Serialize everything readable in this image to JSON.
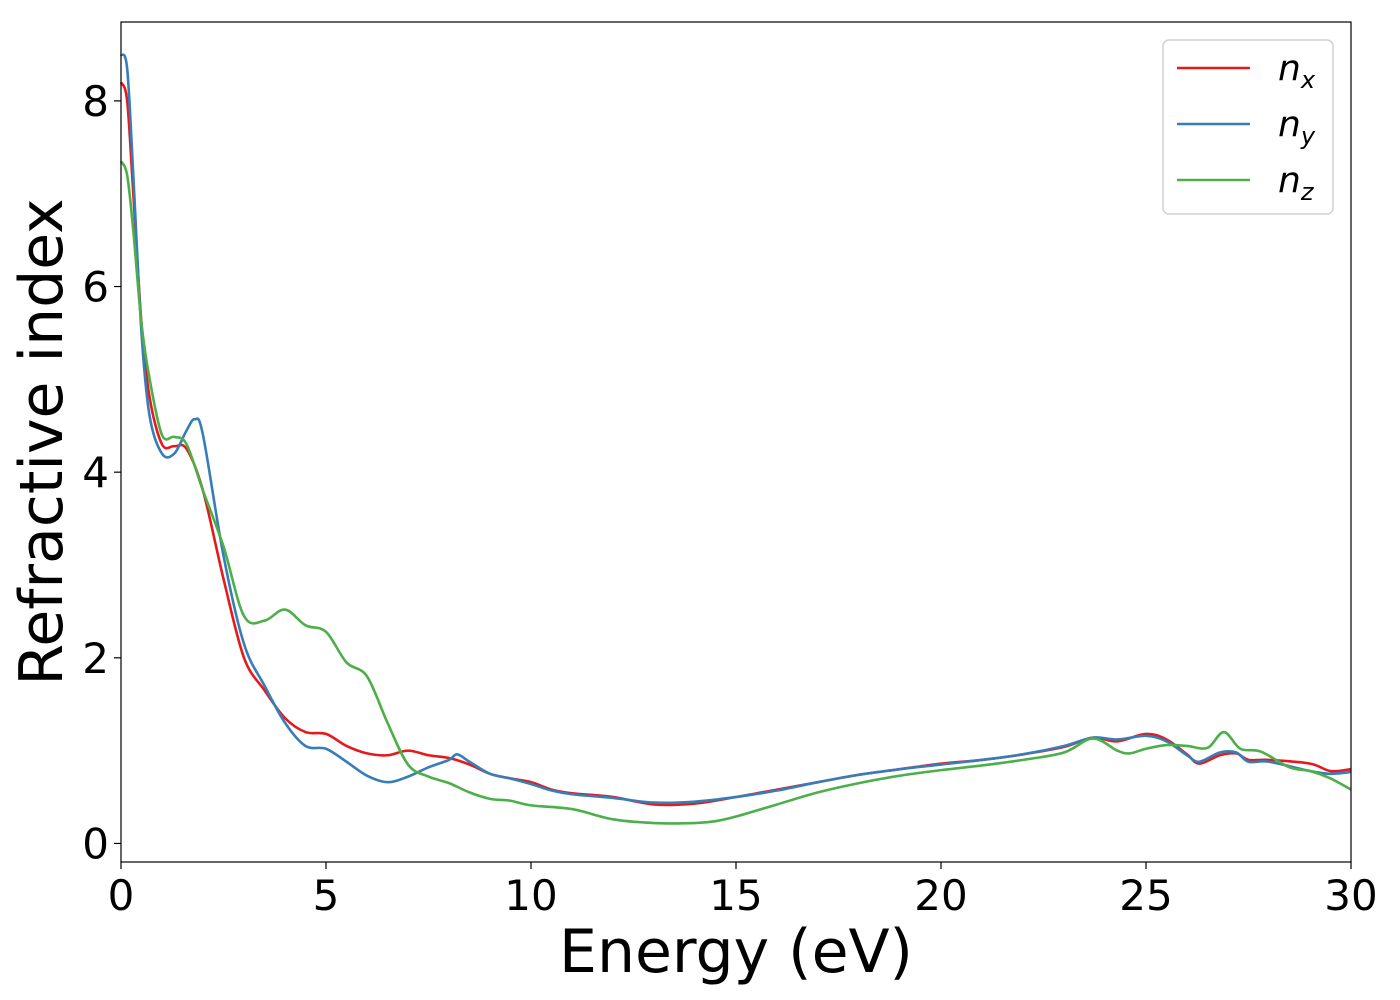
{
  "chart_data": {
    "type": "line",
    "title": "",
    "xlabel": "Energy (eV)",
    "ylabel": "Refractive index",
    "xlim": [
      0,
      30
    ],
    "ylim": [
      -0.2,
      8.85
    ],
    "xticks": [
      0,
      5,
      10,
      15,
      20,
      25,
      30
    ],
    "yticks": [
      0,
      2,
      4,
      6,
      8
    ],
    "grid": false,
    "legend_position": "top-right",
    "series": [
      {
        "name": "n_x",
        "legend_base": "n",
        "legend_sub": "x",
        "color": "#e41a1c",
        "points": [
          [
            0,
            8.2
          ],
          [
            0.15,
            8.0
          ],
          [
            0.3,
            7.0
          ],
          [
            0.5,
            5.6
          ],
          [
            0.7,
            4.8
          ],
          [
            1.0,
            4.3
          ],
          [
            1.3,
            4.28
          ],
          [
            1.6,
            4.25
          ],
          [
            2.0,
            3.8
          ],
          [
            2.5,
            2.85
          ],
          [
            3.0,
            2.0
          ],
          [
            3.5,
            1.65
          ],
          [
            4.0,
            1.35
          ],
          [
            4.5,
            1.2
          ],
          [
            5.0,
            1.18
          ],
          [
            5.5,
            1.05
          ],
          [
            6.0,
            0.97
          ],
          [
            6.5,
            0.95
          ],
          [
            7.0,
            1.0
          ],
          [
            7.5,
            0.95
          ],
          [
            8.0,
            0.92
          ],
          [
            8.5,
            0.85
          ],
          [
            9.0,
            0.75
          ],
          [
            9.5,
            0.7
          ],
          [
            10.0,
            0.66
          ],
          [
            10.5,
            0.58
          ],
          [
            11.0,
            0.54
          ],
          [
            12.0,
            0.5
          ],
          [
            13.0,
            0.42
          ],
          [
            14.0,
            0.43
          ],
          [
            15.0,
            0.5
          ],
          [
            16.0,
            0.58
          ],
          [
            17.0,
            0.66
          ],
          [
            18.0,
            0.74
          ],
          [
            19.0,
            0.8
          ],
          [
            20.0,
            0.86
          ],
          [
            21.0,
            0.9
          ],
          [
            22.0,
            0.96
          ],
          [
            23.0,
            1.04
          ],
          [
            23.7,
            1.14
          ],
          [
            24.3,
            1.1
          ],
          [
            25.0,
            1.18
          ],
          [
            25.5,
            1.12
          ],
          [
            26.0,
            0.96
          ],
          [
            26.3,
            0.86
          ],
          [
            26.8,
            0.95
          ],
          [
            27.2,
            0.97
          ],
          [
            27.5,
            0.9
          ],
          [
            28.0,
            0.9
          ],
          [
            29.0,
            0.86
          ],
          [
            29.5,
            0.78
          ],
          [
            30.0,
            0.8
          ]
        ]
      },
      {
        "name": "n_y",
        "legend_base": "n",
        "legend_sub": "y",
        "color": "#377eb8",
        "points": [
          [
            0,
            8.5
          ],
          [
            0.15,
            8.35
          ],
          [
            0.3,
            7.2
          ],
          [
            0.5,
            5.5
          ],
          [
            0.7,
            4.6
          ],
          [
            1.0,
            4.2
          ],
          [
            1.3,
            4.2
          ],
          [
            1.6,
            4.45
          ],
          [
            1.8,
            4.57
          ],
          [
            2.0,
            4.4
          ],
          [
            2.5,
            3.1
          ],
          [
            3.0,
            2.15
          ],
          [
            3.5,
            1.7
          ],
          [
            4.0,
            1.3
          ],
          [
            4.5,
            1.05
          ],
          [
            5.0,
            1.02
          ],
          [
            5.5,
            0.88
          ],
          [
            6.0,
            0.73
          ],
          [
            6.5,
            0.66
          ],
          [
            7.0,
            0.72
          ],
          [
            7.5,
            0.82
          ],
          [
            8.0,
            0.9
          ],
          [
            8.2,
            0.96
          ],
          [
            8.5,
            0.88
          ],
          [
            9.0,
            0.75
          ],
          [
            9.5,
            0.7
          ],
          [
            10.0,
            0.64
          ],
          [
            10.5,
            0.57
          ],
          [
            11.0,
            0.53
          ],
          [
            12.0,
            0.49
          ],
          [
            13.0,
            0.44
          ],
          [
            14.0,
            0.45
          ],
          [
            15.0,
            0.5
          ],
          [
            16.0,
            0.57
          ],
          [
            17.0,
            0.66
          ],
          [
            18.0,
            0.74
          ],
          [
            19.0,
            0.8
          ],
          [
            20.0,
            0.85
          ],
          [
            21.0,
            0.9
          ],
          [
            22.0,
            0.96
          ],
          [
            23.0,
            1.05
          ],
          [
            23.7,
            1.14
          ],
          [
            24.3,
            1.12
          ],
          [
            25.0,
            1.16
          ],
          [
            25.5,
            1.1
          ],
          [
            26.0,
            0.95
          ],
          [
            26.3,
            0.88
          ],
          [
            26.8,
            0.98
          ],
          [
            27.2,
            0.98
          ],
          [
            27.5,
            0.88
          ],
          [
            28.0,
            0.88
          ],
          [
            29.0,
            0.78
          ],
          [
            29.5,
            0.75
          ],
          [
            30.0,
            0.77
          ]
        ]
      },
      {
        "name": "n_z",
        "legend_base": "n",
        "legend_sub": "z",
        "color": "#4daf4a",
        "points": [
          [
            0,
            7.35
          ],
          [
            0.15,
            7.2
          ],
          [
            0.3,
            6.6
          ],
          [
            0.5,
            5.6
          ],
          [
            0.7,
            5.0
          ],
          [
            1.0,
            4.4
          ],
          [
            1.3,
            4.38
          ],
          [
            1.6,
            4.3
          ],
          [
            2.0,
            3.8
          ],
          [
            2.5,
            3.2
          ],
          [
            3.0,
            2.45
          ],
          [
            3.5,
            2.4
          ],
          [
            4.0,
            2.52
          ],
          [
            4.5,
            2.35
          ],
          [
            5.0,
            2.28
          ],
          [
            5.5,
            1.95
          ],
          [
            6.0,
            1.8
          ],
          [
            6.5,
            1.3
          ],
          [
            7.0,
            0.85
          ],
          [
            7.5,
            0.72
          ],
          [
            8.0,
            0.65
          ],
          [
            8.5,
            0.55
          ],
          [
            9.0,
            0.48
          ],
          [
            9.5,
            0.46
          ],
          [
            10.0,
            0.41
          ],
          [
            11.0,
            0.37
          ],
          [
            12.0,
            0.26
          ],
          [
            13.0,
            0.22
          ],
          [
            14.0,
            0.22
          ],
          [
            14.5,
            0.24
          ],
          [
            15.0,
            0.29
          ],
          [
            16.0,
            0.42
          ],
          [
            17.0,
            0.55
          ],
          [
            18.0,
            0.65
          ],
          [
            19.0,
            0.73
          ],
          [
            20.0,
            0.79
          ],
          [
            21.0,
            0.84
          ],
          [
            22.0,
            0.9
          ],
          [
            23.0,
            0.98
          ],
          [
            23.7,
            1.13
          ],
          [
            24.3,
            1.0
          ],
          [
            24.6,
            0.97
          ],
          [
            25.0,
            1.02
          ],
          [
            25.5,
            1.06
          ],
          [
            26.0,
            1.05
          ],
          [
            26.5,
            1.03
          ],
          [
            26.9,
            1.2
          ],
          [
            27.3,
            1.02
          ],
          [
            27.8,
            0.99
          ],
          [
            28.5,
            0.82
          ],
          [
            29.0,
            0.78
          ],
          [
            29.5,
            0.7
          ],
          [
            30.0,
            0.58
          ]
        ]
      }
    ]
  }
}
